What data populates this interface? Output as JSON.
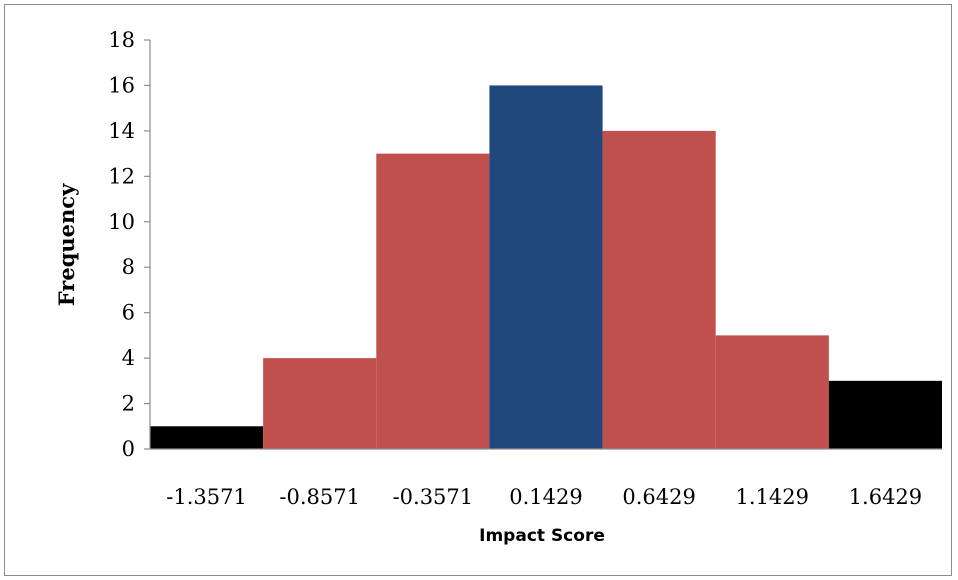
{
  "chart_data": {
    "type": "bar",
    "title": "",
    "xlabel": "Impact Score",
    "ylabel": "Frequency",
    "categories": [
      "-1.3571",
      "-0.8571",
      "-0.3571",
      "0.1429",
      "0.6429",
      "1.1429",
      "1.6429"
    ],
    "values": [
      1,
      4,
      13,
      16,
      14,
      5,
      3
    ],
    "bar_colors": [
      "#000000",
      "#c0504d",
      "#c0504d",
      "#1f497d",
      "#c0504d",
      "#c0504d",
      "#000000"
    ],
    "ylim": [
      0,
      18
    ],
    "yticks": [
      0,
      2,
      4,
      6,
      8,
      10,
      12,
      14,
      16,
      18
    ],
    "grid": false,
    "legend": "none"
  }
}
